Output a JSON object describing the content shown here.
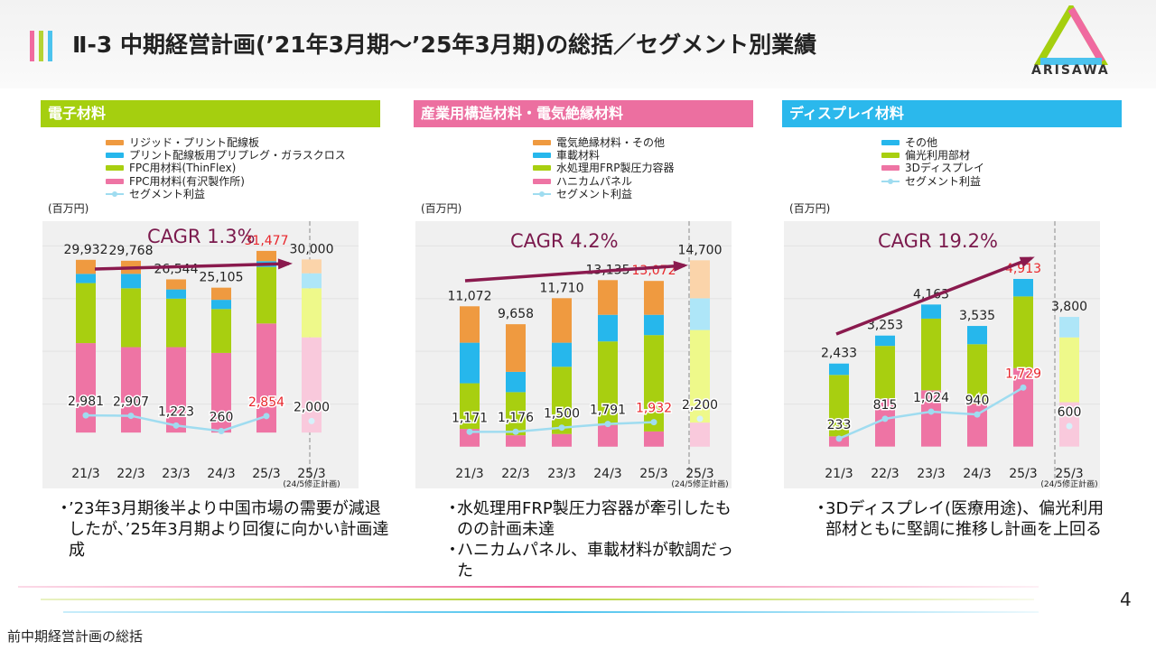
{
  "header": {
    "title": "Ⅱ-3 中期経営計画(’21年3月期～’25年3月期)の総括／セグメント別業績",
    "logo_text": "ARISAWA",
    "bar_colors": [
      "#f06aa0",
      "#b5d334",
      "#4cc3ee"
    ]
  },
  "chart_data": [
    {
      "type": "bar",
      "stacked": true,
      "title": "電子材料",
      "header_color": "#a5cf0f",
      "unit": "(百万円)",
      "cagr": "CAGR 1.3%",
      "categories": [
        "21/3",
        "22/3",
        "23/3",
        "24/3",
        "25/3",
        "25/3"
      ],
      "plan_note": "(24/5修正計画)",
      "legend": [
        "リジッド・プリント配線板",
        "プリント配線板用プリプレグ・ガラスクロス",
        "FPC用材料(ThinFlex)",
        "FPC用材料(有沢製作所)",
        "セグメント利益"
      ],
      "series": [
        {
          "name": "FPC用材料(有沢製作所)",
          "color": "#ee74a4",
          "plan_color": "#f9c9dc",
          "values": [
            15500,
            14800,
            14800,
            13800,
            18900,
            16500
          ]
        },
        {
          "name": "FPC用材料(ThinFlex)",
          "color": "#a8cf10",
          "plan_color": "#eef98a",
          "values": [
            10400,
            10200,
            8400,
            7600,
            9800,
            8500
          ]
        },
        {
          "name": "プリント配線板用プリプレグ・ガラスクロス",
          "color": "#26b7ec",
          "plan_color": "#aee6f8",
          "values": [
            1600,
            2500,
            1600,
            1600,
            1000,
            2600
          ]
        },
        {
          "name": "リジッド・プリント配線板",
          "color": "#ef9a40",
          "plan_color": "#fbd4aa",
          "values": [
            2432,
            2268,
            1744,
            2105,
            1777,
            2400
          ]
        }
      ],
      "totals": [
        "29,932",
        "29,768",
        "26,544",
        "25,105",
        "31,477",
        "30,000"
      ],
      "total_values": [
        29932,
        29768,
        26544,
        25105,
        31477,
        30000
      ],
      "profit_name": "セグメント利益",
      "profit": [
        2981,
        2907,
        1223,
        260,
        2854,
        2000
      ],
      "profit_labels": [
        "2,981",
        "2,907",
        "1,223",
        "260",
        "2,854",
        "2,000"
      ],
      "ylim": [
        -4200,
        36000
      ],
      "highlight_color": "#e8262b"
    },
    {
      "type": "bar",
      "stacked": true,
      "title": "産業用構造材料・電気絶縁材料",
      "header_color": "#ec6fa0",
      "unit": "(百万円)",
      "cagr": "CAGR 4.2%",
      "categories": [
        "21/3",
        "22/3",
        "23/3",
        "24/3",
        "25/3",
        "25/3"
      ],
      "plan_note": "(24/5修正計画)",
      "legend": [
        "電気絶縁材料・その他",
        "車載材料",
        "水処理用FRP製圧力容器",
        "ハニカムパネル",
        "セグメント利益"
      ],
      "series": [
        {
          "name": "ハニカムパネル",
          "color": "#ee74a4",
          "plan_color": "#f9c9dc",
          "values": [
            1400,
            900,
            1000,
            1700,
            1200,
            1900
          ]
        },
        {
          "name": "水処理用FRP製圧力容器",
          "color": "#a8cf10",
          "plan_color": "#eef98a",
          "values": [
            3600,
            3400,
            5300,
            6600,
            7600,
            7300
          ]
        },
        {
          "name": "車載材料",
          "color": "#26b7ec",
          "plan_color": "#aee6f8",
          "values": [
            3200,
            1600,
            1900,
            2100,
            1600,
            2500
          ]
        },
        {
          "name": "電気絶縁材料・その他",
          "color": "#ef9a40",
          "plan_color": "#fbd4aa",
          "values": [
            2872,
            3758,
            3510,
            2735,
            2672,
            3000
          ]
        }
      ],
      "totals": [
        "11,072",
        "9,658",
        "11,710",
        "13,135",
        "13,072",
        "14,700"
      ],
      "total_values": [
        11072,
        9658,
        11710,
        13135,
        13072,
        14700
      ],
      "profit_name": "セグメント利益",
      "profit": [
        1171,
        1176,
        1500,
        1791,
        1932,
        2200
      ],
      "profit_labels": [
        "1,171",
        "1,176",
        "1,500",
        "1,791",
        "1,932",
        "2,200"
      ],
      "ylim": [
        -800,
        17500
      ],
      "highlight_color": "#e8262b"
    },
    {
      "type": "bar",
      "stacked": true,
      "title": "ディスプレイ材料",
      "header_color": "#2bb8ec",
      "unit": "(百万円)",
      "cagr": "CAGR 19.2%",
      "categories": [
        "21/3",
        "22/3",
        "23/3",
        "24/3",
        "25/3",
        "25/3"
      ],
      "plan_note": "(24/5修正計画)",
      "legend": [
        "その他",
        "偏光利用部材",
        "3Dディスプレイ",
        "セグメント利益"
      ],
      "series": [
        {
          "name": "3Dディスプレイ",
          "color": "#ee74a4",
          "plan_color": "#f9c9dc",
          "values": [
            300,
            1400,
            1650,
            1250,
            2300,
            1300
          ]
        },
        {
          "name": "偏光利用部材",
          "color": "#a8cf10",
          "plan_color": "#eef98a",
          "values": [
            1800,
            1550,
            2100,
            1750,
            2100,
            1900
          ]
        },
        {
          "name": "その他",
          "color": "#26b7ec",
          "plan_color": "#aee6f8",
          "values": [
            333,
            303,
            413,
            535,
            513,
            600
          ]
        }
      ],
      "totals": [
        "2,433",
        "3,253",
        "4,163",
        "3,535",
        "4,913",
        "3,800"
      ],
      "total_values": [
        2433,
        3253,
        4163,
        3535,
        4913,
        3800
      ],
      "profit_name": "セグメント利益",
      "profit": [
        233,
        815,
        1024,
        940,
        1729,
        600
      ],
      "profit_labels": [
        "233",
        "815",
        "1,024",
        "940",
        "1,729",
        "600"
      ],
      "ylim": [
        -300,
        6500
      ],
      "highlight_color": "#e8262b"
    }
  ],
  "bullets": [
    [
      "’23年3月期後半より中国市場の需要が減退したが、’25年3月期より回復に向かい計画達成"
    ],
    [
      "水処理用FRP製圧力容器が牽引したものの計画未達",
      "ハニカムパネル、車載材料が軟調だった"
    ],
    [
      "3Dディスプレイ(医療用途)、偏光利用部材ともに堅調に推移し計画を上回る"
    ]
  ],
  "page_number": "4",
  "footnote": "前中期経営計画の総括"
}
